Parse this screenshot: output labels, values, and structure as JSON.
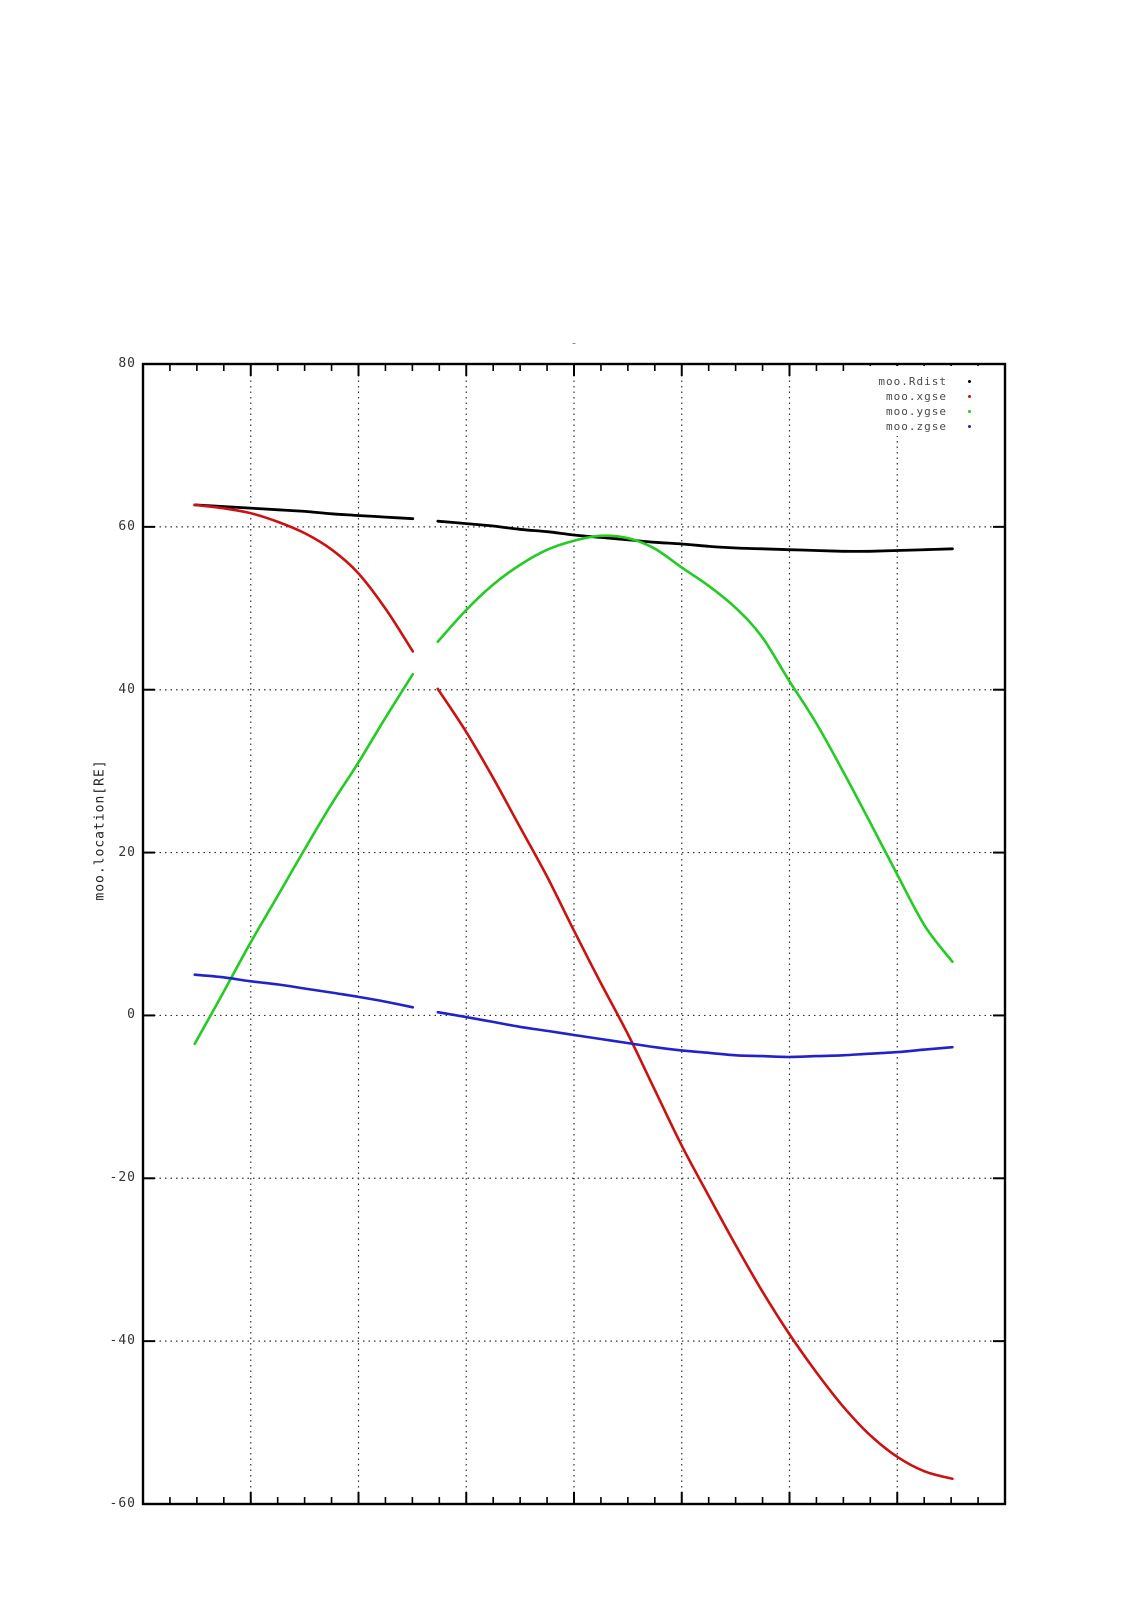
{
  "chart": {
    "title": "-",
    "ylabel": "moo.location[RE]",
    "legend": [
      {
        "label": "moo.Rdist",
        "color": "#000000"
      },
      {
        "label": "moo.xgse",
        "color": "#cc1111"
      },
      {
        "label": "moo.ygse",
        "color": "#22cc22"
      },
      {
        "label": "moo.zgse",
        "color": "#2222cc"
      }
    ]
  },
  "chart_data": {
    "type": "line",
    "title": "-",
    "xlabel": "",
    "ylabel": "moo.location[RE]",
    "ylim": [
      -60,
      80
    ],
    "yticks": [
      80,
      60,
      40,
      20,
      0,
      -20,
      -40,
      -60
    ],
    "x_tick_labels": [],
    "x_is_normalized_0_to_1": true,
    "grid": "dotted",
    "legend_position": "top-right",
    "frame_color": "#000000",
    "grid_color": "#333333",
    "note": "four series share a data gap between x=0.313 and x=0.342",
    "segment1_x": [
      0.06,
      0.092,
      0.124,
      0.157,
      0.188,
      0.219,
      0.249,
      0.281,
      0.313
    ],
    "segment2_x": [
      0.342,
      0.375,
      0.406,
      0.437,
      0.469,
      0.5,
      0.531,
      0.563,
      0.594,
      0.625,
      0.657,
      0.688,
      0.718,
      0.749,
      0.781,
      0.812,
      0.843,
      0.875,
      0.907,
      0.939
    ],
    "series": [
      {
        "name": "moo.Rdist",
        "color": "#000000",
        "width": 2.8,
        "segment1_y": [
          62.7,
          62.5,
          62.3,
          62.1,
          61.9,
          61.6,
          61.4,
          61.2,
          61.0
        ],
        "segment2_y": [
          60.7,
          60.4,
          60.1,
          59.7,
          59.4,
          59.0,
          58.7,
          58.4,
          58.1,
          57.9,
          57.6,
          57.4,
          57.3,
          57.2,
          57.1,
          57.0,
          57.0,
          57.1,
          57.2,
          57.3
        ]
      },
      {
        "name": "moo.xgse",
        "color": "#cc1111",
        "width": 2.6,
        "segment1_y": [
          62.7,
          62.3,
          61.7,
          60.6,
          59.2,
          57.2,
          54.4,
          50.0,
          44.7
        ],
        "segment2_y": [
          40.1,
          34.8,
          29.2,
          23.2,
          17.0,
          10.4,
          4.0,
          -2.4,
          -9.2,
          -16.0,
          -22.3,
          -28.3,
          -33.8,
          -39.0,
          -43.8,
          -48.0,
          -51.5,
          -54.2,
          -56.0,
          -56.9
        ]
      },
      {
        "name": "moo.ygse",
        "color": "#22cc22",
        "width": 2.6,
        "segment1_y": [
          -3.5,
          2.6,
          8.8,
          14.8,
          20.5,
          26.0,
          30.9,
          36.5,
          41.9
        ],
        "segment2_y": [
          45.9,
          49.8,
          52.9,
          55.3,
          57.2,
          58.3,
          58.9,
          58.6,
          57.3,
          55.0,
          52.7,
          50.0,
          46.5,
          41.2,
          35.9,
          30.0,
          23.8,
          17.3,
          11.0,
          6.6
        ]
      },
      {
        "name": "moo.zgse",
        "color": "#2222cc",
        "width": 2.6,
        "segment1_y": [
          5.0,
          4.7,
          4.2,
          3.8,
          3.3,
          2.8,
          2.3,
          1.7,
          1.0
        ],
        "segment2_y": [
          0.4,
          -0.2,
          -0.8,
          -1.4,
          -1.9,
          -2.4,
          -2.9,
          -3.4,
          -3.9,
          -4.3,
          -4.6,
          -4.9,
          -5.0,
          -5.1,
          -5.0,
          -4.9,
          -4.7,
          -4.5,
          -4.2,
          -3.9
        ]
      }
    ]
  }
}
